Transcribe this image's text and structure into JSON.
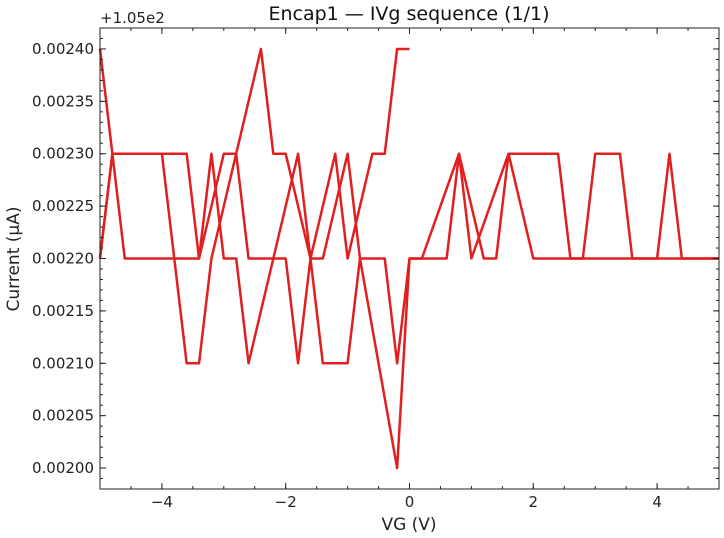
{
  "chart_data": {
    "type": "line",
    "title": "Encap1 — IVg sequence (1/1)",
    "xlabel": "VG (V)",
    "ylabel": "Current (µA)",
    "y_offset_label": "+1.05e2",
    "xlim": [
      -5,
      5
    ],
    "ylim": [
      0.00198,
      0.00242
    ],
    "x_ticks": [
      -4,
      -2,
      0,
      2,
      4
    ],
    "x_tick_labels": [
      "−4",
      "−2",
      "0",
      "2",
      "4"
    ],
    "y_ticks": [
      0.002,
      0.00205,
      0.0021,
      0.00215,
      0.0022,
      0.00225,
      0.0023,
      0.00235,
      0.0024
    ],
    "y_tick_labels": [
      "0.00200",
      "0.00205",
      "0.00210",
      "0.00215",
      "0.00220",
      "0.00225",
      "0.00230",
      "0.00235",
      "0.00240"
    ],
    "grid": false,
    "line_color": "#e02020",
    "series": [
      {
        "x": [
          -5.0,
          -4.8,
          -4.6,
          -3.8,
          -3.6,
          -3.4,
          -3.2,
          -2.4,
          -2.2,
          -2.0,
          -1.6,
          -1.4,
          -1.0,
          -0.8,
          -0.2,
          0.0,
          0.2,
          0.8,
          1.0,
          1.6,
          2.0,
          4.0,
          4.2,
          4.4,
          5.0
        ],
        "y": [
          0.0024,
          0.0023,
          0.0022,
          0.0022,
          0.0021,
          0.0021,
          0.0022,
          0.0024,
          0.0023,
          0.0023,
          0.0022,
          0.0022,
          0.0023,
          0.0022,
          0.002,
          0.0022,
          0.0022,
          0.0023,
          0.0022,
          0.0023,
          0.0022,
          0.0022,
          0.0023,
          0.0022,
          0.0022
        ]
      },
      {
        "x": [
          5.0,
          4.4,
          3.6,
          3.4,
          3.0,
          2.8,
          2.6,
          2.4,
          1.6,
          1.4,
          1.2,
          0.8,
          0.6,
          0.0,
          -0.2,
          -0.4,
          -0.8,
          -1.0,
          -1.4,
          -1.6,
          -1.8,
          -2.0,
          -2.2,
          -2.6,
          -2.8,
          -3.0,
          -3.2,
          -3.4,
          -3.8,
          -4.0,
          -4.8,
          -5.0
        ],
        "y": [
          0.0022,
          0.0022,
          0.0022,
          0.0023,
          0.0023,
          0.0022,
          0.0022,
          0.0023,
          0.0023,
          0.0022,
          0.0022,
          0.0023,
          0.0022,
          0.0022,
          0.0021,
          0.0022,
          0.0022,
          0.0021,
          0.0021,
          0.0022,
          0.0021,
          0.0022,
          0.0022,
          0.0021,
          0.0022,
          0.0022,
          0.0023,
          0.0022,
          0.0022,
          0.0023,
          0.0023,
          0.0022
        ]
      },
      {
        "x": [
          -5.0,
          -4.8,
          -3.6,
          -3.4,
          -3.0,
          -2.8,
          -2.6,
          -2.4,
          -2.2,
          -1.8,
          -1.6,
          -1.2,
          -1.0,
          -0.6,
          -0.4,
          -0.2,
          0.0
        ],
        "y": [
          0.0022,
          0.0023,
          0.0023,
          0.0022,
          0.0023,
          0.0023,
          0.0022,
          0.0022,
          0.0022,
          0.0023,
          0.0022,
          0.0023,
          0.0022,
          0.0023,
          0.0023,
          0.0024,
          0.0024
        ]
      }
    ]
  }
}
